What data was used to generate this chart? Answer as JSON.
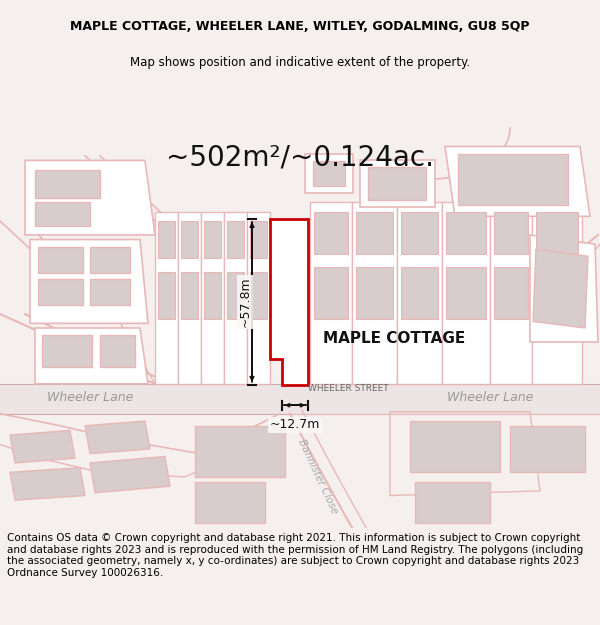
{
  "title": "MAPLE COTTAGE, WHEELER LANE, WITLEY, GODALMING, GU8 5QP",
  "subtitle": "Map shows position and indicative extent of the property.",
  "area_text": "~502m²/~0.124ac.",
  "property_label": "MAPLE COTTAGE",
  "dim_width": "~12.7m",
  "dim_height": "~57.8m",
  "street_label_left": "Wheeler Lane",
  "street_label_right": "Wheeler Lane",
  "street_label_center": "WHEELER STREET",
  "street_label_banister": "Bannister Close",
  "footer_text": "Contains OS data © Crown copyright and database right 2021. This information is subject to Crown copyright and database rights 2023 and is reproduced with the permission of HM Land Registry. The polygons (including the associated geometry, namely x, y co-ordinates) are subject to Crown copyright and database rights 2023 Ordnance Survey 100026316.",
  "bg_color": "#f5f0ee",
  "map_bg": "#ffffff",
  "road_color": "#e8b8b8",
  "road_fill": "#ede0e0",
  "building_fill": "#d8cccc",
  "property_outline": "#cc0000",
  "dim_line_color": "#111111",
  "title_fontsize": 9,
  "subtitle_fontsize": 8.5,
  "area_fontsize": 20,
  "footer_fontsize": 7.5
}
